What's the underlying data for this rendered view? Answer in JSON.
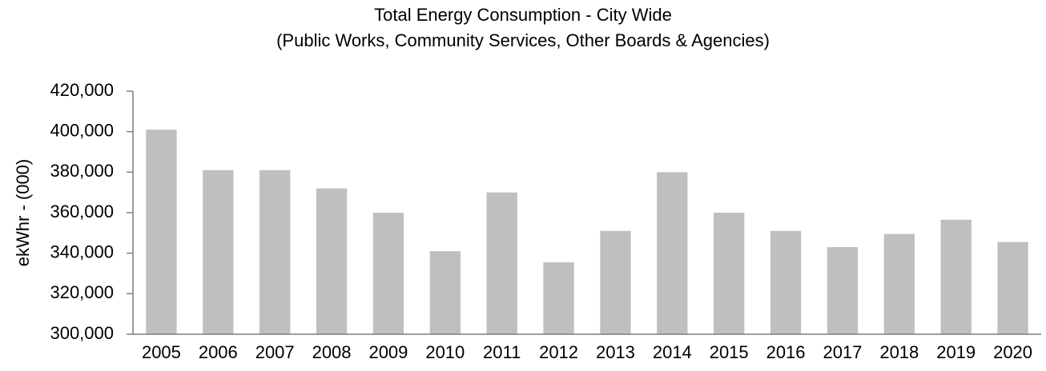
{
  "chart_data": {
    "type": "bar",
    "title": "Total Energy Consumption - City Wide",
    "subtitle": "(Public Works, Community Services, Other Boards & Agencies)",
    "y_label": "ekWhr - (000)",
    "categories": [
      "2005",
      "2006",
      "2007",
      "2008",
      "2009",
      "2010",
      "2011",
      "2012",
      "2013",
      "2014",
      "2015",
      "2016",
      "2017",
      "2018",
      "2019",
      "2020"
    ],
    "values": [
      401000,
      381000,
      381000,
      372000,
      360000,
      341000,
      370000,
      335500,
      351000,
      380000,
      360000,
      351000,
      343000,
      349500,
      356500,
      345500
    ],
    "color": "#bfbfbf",
    "ylim": [
      300000,
      420000
    ],
    "yticks": [
      {
        "value": 300000,
        "label": "300,000"
      },
      {
        "value": 320000,
        "label": "320,000"
      },
      {
        "value": 340000,
        "label": "340,000"
      },
      {
        "value": 360000,
        "label": "360,000"
      },
      {
        "value": 380000,
        "label": "380,000"
      },
      {
        "value": 400000,
        "label": "400,000"
      },
      {
        "value": 420000,
        "label": "420,000"
      }
    ],
    "grid": false
  }
}
